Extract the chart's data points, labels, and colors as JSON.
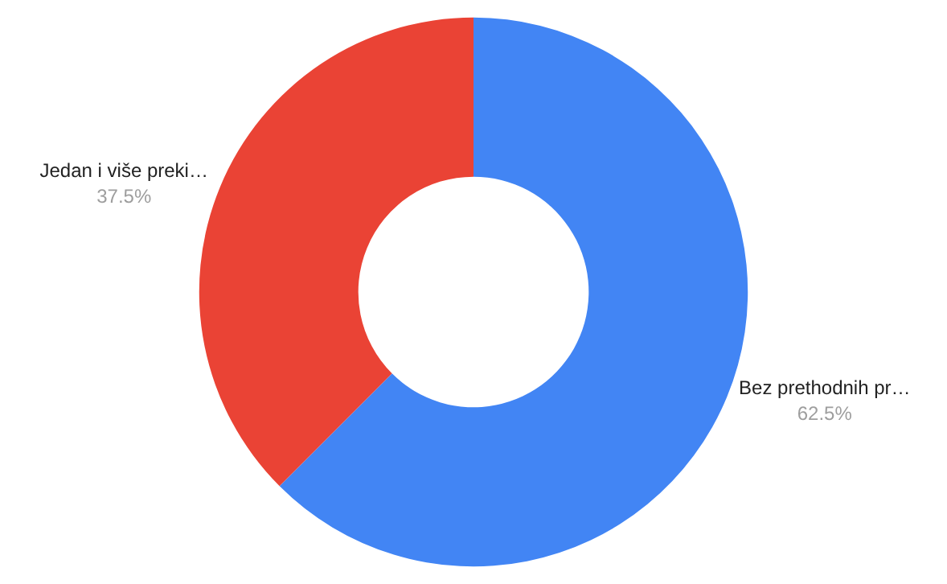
{
  "chart_data": {
    "type": "donut",
    "categories": [
      "Bez prethodnih pr…",
      "Jedan i više preki…"
    ],
    "values": [
      62.5,
      37.5
    ],
    "colors": [
      "#4285f4",
      "#ea4335"
    ],
    "value_labels": [
      "62.5%",
      "37.5%"
    ],
    "legend": false
  }
}
